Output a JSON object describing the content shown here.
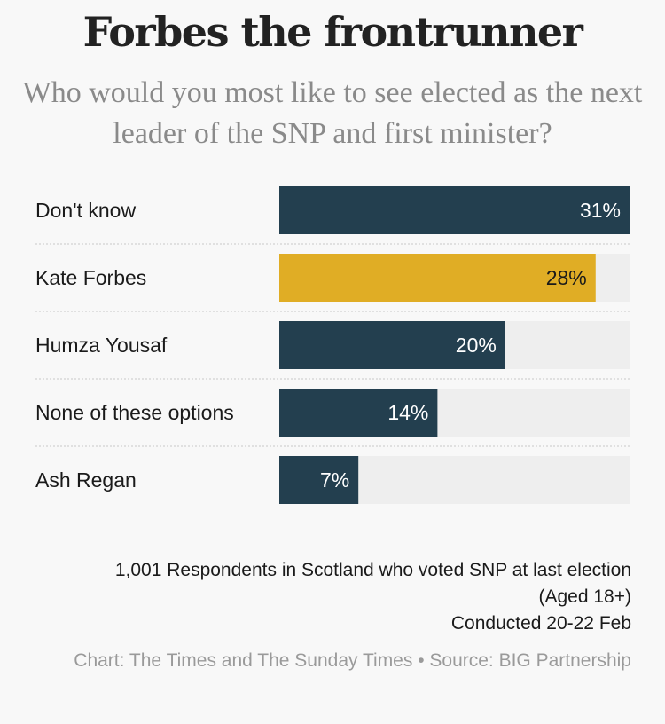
{
  "title": "Forbes the frontrunner",
  "subtitle": "Who would you most like to see elected as the next leader of the SNP and first minister?",
  "chart_data": {
    "type": "bar",
    "orientation": "horizontal",
    "categories": [
      "Don't know",
      "Kate Forbes",
      "Humza Yousaf",
      "None of these options",
      "Ash Regan"
    ],
    "values": [
      31,
      28,
      20,
      14,
      7
    ],
    "value_labels": [
      "31%",
      "28%",
      "20%",
      "14%",
      "7%"
    ],
    "unit": "%",
    "xlim": [
      0,
      31
    ],
    "highlight_category": "Kate Forbes",
    "colors": {
      "default": "#233f4f",
      "highlight": "#e0ad25",
      "track": "#eeeeee",
      "default_label": "#ffffff",
      "highlight_label": "#1a1a1a"
    }
  },
  "footer": {
    "note_line1": "1,001 Respondents in Scotland who voted SNP at last election",
    "note_line2": "(Aged 18+)",
    "note_line3": "Conducted 20-22 Feb",
    "source": "Chart: The Times and The Sunday Times • Source: BIG Partnership"
  }
}
